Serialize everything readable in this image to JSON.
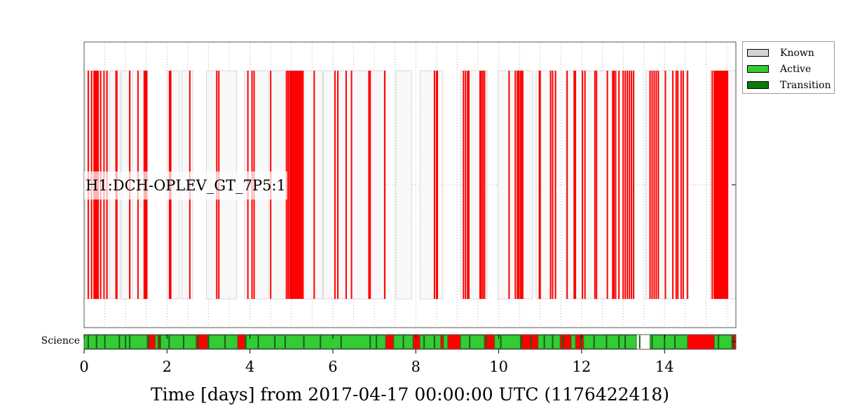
{
  "chart_data": {
    "type": "segments",
    "xlabel": "Time [days] from 2017-04-17 00:00:00 UTC (1176422418)",
    "xlim": [
      0,
      15.72
    ],
    "xticks": [
      0,
      2,
      4,
      6,
      8,
      10,
      12,
      14
    ],
    "xtick_labels": [
      "0",
      "2",
      "4",
      "6",
      "8",
      "10",
      "12",
      "14"
    ],
    "grid": true,
    "legend_position": "outside-top-right",
    "legend": [
      {
        "label": "Known",
        "color": "#d3d3d3"
      },
      {
        "label": "Active",
        "color": "#33cc33"
      },
      {
        "label": "Transition",
        "color": "#0a7a0a"
      }
    ],
    "main_flag": {
      "name": "H1:DCH-OPLEV_GT_7P5:1",
      "known_color": "#f8f8f8",
      "active_color": "#ff0000",
      "known": [
        [
          0.03,
          0.58
        ],
        [
          0.62,
          0.87
        ],
        [
          0.9,
          1.12
        ],
        [
          1.16,
          1.53
        ],
        [
          2.0,
          2.3
        ],
        [
          2.36,
          2.62
        ],
        [
          2.95,
          3.68
        ],
        [
          3.87,
          4.45
        ],
        [
          4.5,
          5.75
        ],
        [
          5.77,
          7.28
        ],
        [
          7.52,
          7.9
        ],
        [
          8.1,
          8.65
        ],
        [
          9.08,
          9.72
        ],
        [
          9.98,
          10.82
        ],
        [
          10.9,
          11.38
        ],
        [
          11.62,
          13.28
        ],
        [
          13.55,
          14.58
        ],
        [
          15.1,
          15.72
        ]
      ],
      "active": [
        0.1,
        0.18,
        0.24,
        0.27,
        0.29,
        0.31,
        0.34,
        0.4,
        0.48,
        0.55,
        0.77,
        0.79,
        1.1,
        1.3,
        1.45,
        1.48,
        1.51,
        2.06,
        2.09,
        2.55,
        3.2,
        3.25,
        3.95,
        4.05,
        4.1,
        4.5,
        4.88,
        4.92,
        4.96,
        4.98,
        5.01,
        5.03,
        5.05,
        5.08,
        5.1,
        5.13,
        5.15,
        5.17,
        5.2,
        5.22,
        5.25,
        5.28,
        5.55,
        6.05,
        6.12,
        6.32,
        6.45,
        6.87,
        6.9,
        7.25,
        8.45,
        8.5,
        8.52,
        9.15,
        9.2,
        9.25,
        9.28,
        9.55,
        9.58,
        9.62,
        9.66,
        10.25,
        10.4,
        10.45,
        10.48,
        10.52,
        10.55,
        10.58,
        10.98,
        11.0,
        11.25,
        11.3,
        11.37,
        11.65,
        11.82,
        11.85,
        12.02,
        12.08,
        12.32,
        12.36,
        12.62,
        12.75,
        12.78,
        12.82,
        12.9,
        13.0,
        13.05,
        13.1,
        13.15,
        13.2,
        13.25,
        13.65,
        13.7,
        13.75,
        13.8,
        13.85,
        14.02,
        14.2,
        14.28,
        14.32,
        14.4,
        14.45,
        14.55,
        15.15,
        15.2,
        15.23,
        15.25,
        15.28,
        15.3,
        15.32,
        15.35,
        15.38,
        15.4,
        15.43,
        15.45,
        15.48,
        15.5,
        15.52
      ]
    },
    "science_flag": {
      "name": "Science",
      "active": [
        [
          0.0,
          1.52
        ],
        [
          1.72,
          1.78
        ],
        [
          1.85,
          2.7
        ],
        [
          2.98,
          3.7
        ],
        [
          3.88,
          7.27
        ],
        [
          7.47,
          7.93
        ],
        [
          8.1,
          8.6
        ],
        [
          8.67,
          8.77
        ],
        [
          9.08,
          9.65
        ],
        [
          9.9,
          10.52
        ],
        [
          10.95,
          11.48
        ],
        [
          11.75,
          11.85
        ],
        [
          12.05,
          13.32
        ],
        [
          13.65,
          14.55
        ],
        [
          15.2,
          15.62
        ]
      ],
      "transitions": [
        0.1,
        0.3,
        0.5,
        0.85,
        1.0,
        1.1,
        1.55,
        1.82,
        2.05,
        2.4,
        2.75,
        3.0,
        3.4,
        3.9,
        4.2,
        4.6,
        4.85,
        5.3,
        5.7,
        6.2,
        6.9,
        7.05,
        7.7,
        8.2,
        8.45,
        9.3,
        9.7,
        10.05,
        10.55,
        10.78,
        11.1,
        11.3,
        11.55,
        11.98,
        12.3,
        12.6,
        12.9,
        13.05,
        13.4,
        13.7,
        14.0,
        14.25,
        15.3,
        15.66
      ]
    }
  }
}
